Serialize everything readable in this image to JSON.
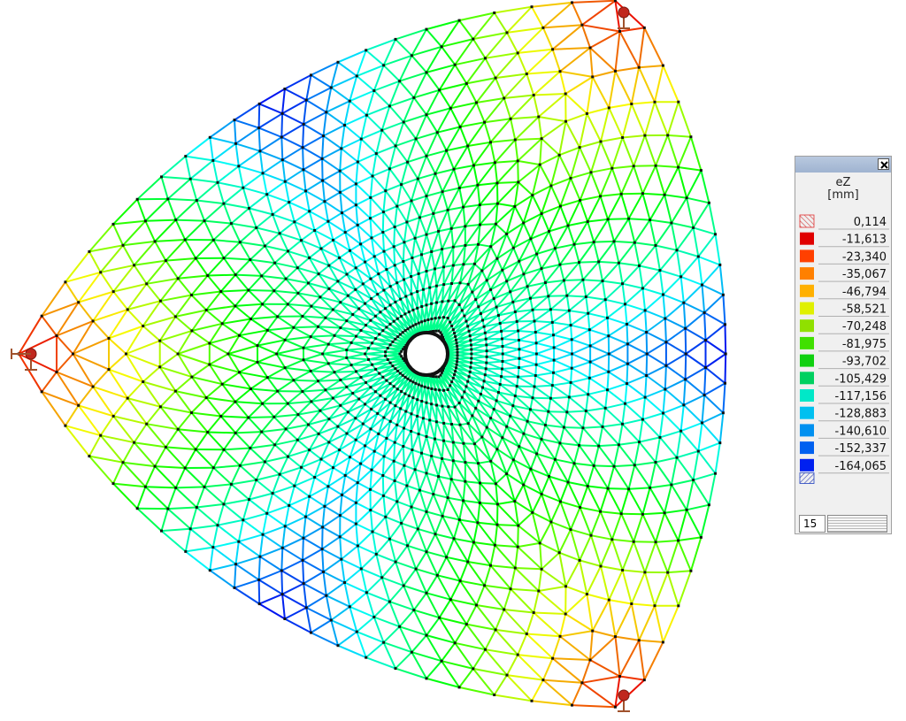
{
  "legend": {
    "title": "eZ",
    "unit": "[mm]",
    "max_label": "0,114",
    "max_color": "#e03030",
    "min_color": "#2040c0",
    "levels": [
      {
        "label": "-11,613",
        "color": "#e00000"
      },
      {
        "label": "-23,340",
        "color": "#ff4000"
      },
      {
        "label": "-35,067",
        "color": "#ff8000"
      },
      {
        "label": "-46,794",
        "color": "#ffb000"
      },
      {
        "label": "-58,521",
        "color": "#e0f000"
      },
      {
        "label": "-70,248",
        "color": "#90e000"
      },
      {
        "label": "-81,975",
        "color": "#40e000"
      },
      {
        "label": "-93,702",
        "color": "#10d010"
      },
      {
        "label": "-105,429",
        "color": "#00d060"
      },
      {
        "label": "-117,156",
        "color": "#00e8c8"
      },
      {
        "label": "-128,883",
        "color": "#00c0f0"
      },
      {
        "label": "-140,610",
        "color": "#0090f0"
      },
      {
        "label": "-152,337",
        "color": "#0060f0"
      },
      {
        "label": "-164,065",
        "color": "#0020f0"
      }
    ],
    "count": 15
  }
}
